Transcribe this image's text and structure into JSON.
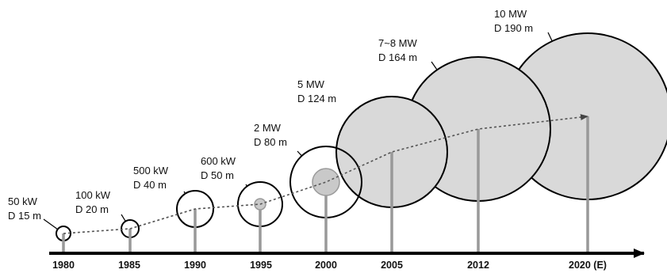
{
  "timeline": {
    "axis_color": "#000000",
    "tower_color": "#999999",
    "trend_color": "#555555",
    "rotor_fill_color": "#d9d9d9",
    "rotor_stroke_color": "#000000",
    "turbines": [
      {
        "year": "1980",
        "power": "50 kW",
        "diameter": "D 15 m",
        "filled": false
      },
      {
        "year": "1985",
        "power": "100 kW",
        "diameter": "D 20 m",
        "filled": false
      },
      {
        "year": "1990",
        "power": "500 kW",
        "diameter": "D 40 m",
        "filled": false
      },
      {
        "year": "1995",
        "power": "600 kW",
        "diameter": "D 50 m",
        "filled": false
      },
      {
        "year": "2000",
        "power": "2 MW",
        "diameter": "D 80 m",
        "filled": false
      },
      {
        "year": "2005",
        "power": "5 MW",
        "diameter": "D 124 m",
        "filled": true
      },
      {
        "year": "2012",
        "power": "7~8 MW",
        "diameter": "D 164 m",
        "filled": true
      },
      {
        "year": "2020 (E)",
        "power": "10 MW",
        "diameter": "D 190 m",
        "filled": true
      }
    ]
  }
}
